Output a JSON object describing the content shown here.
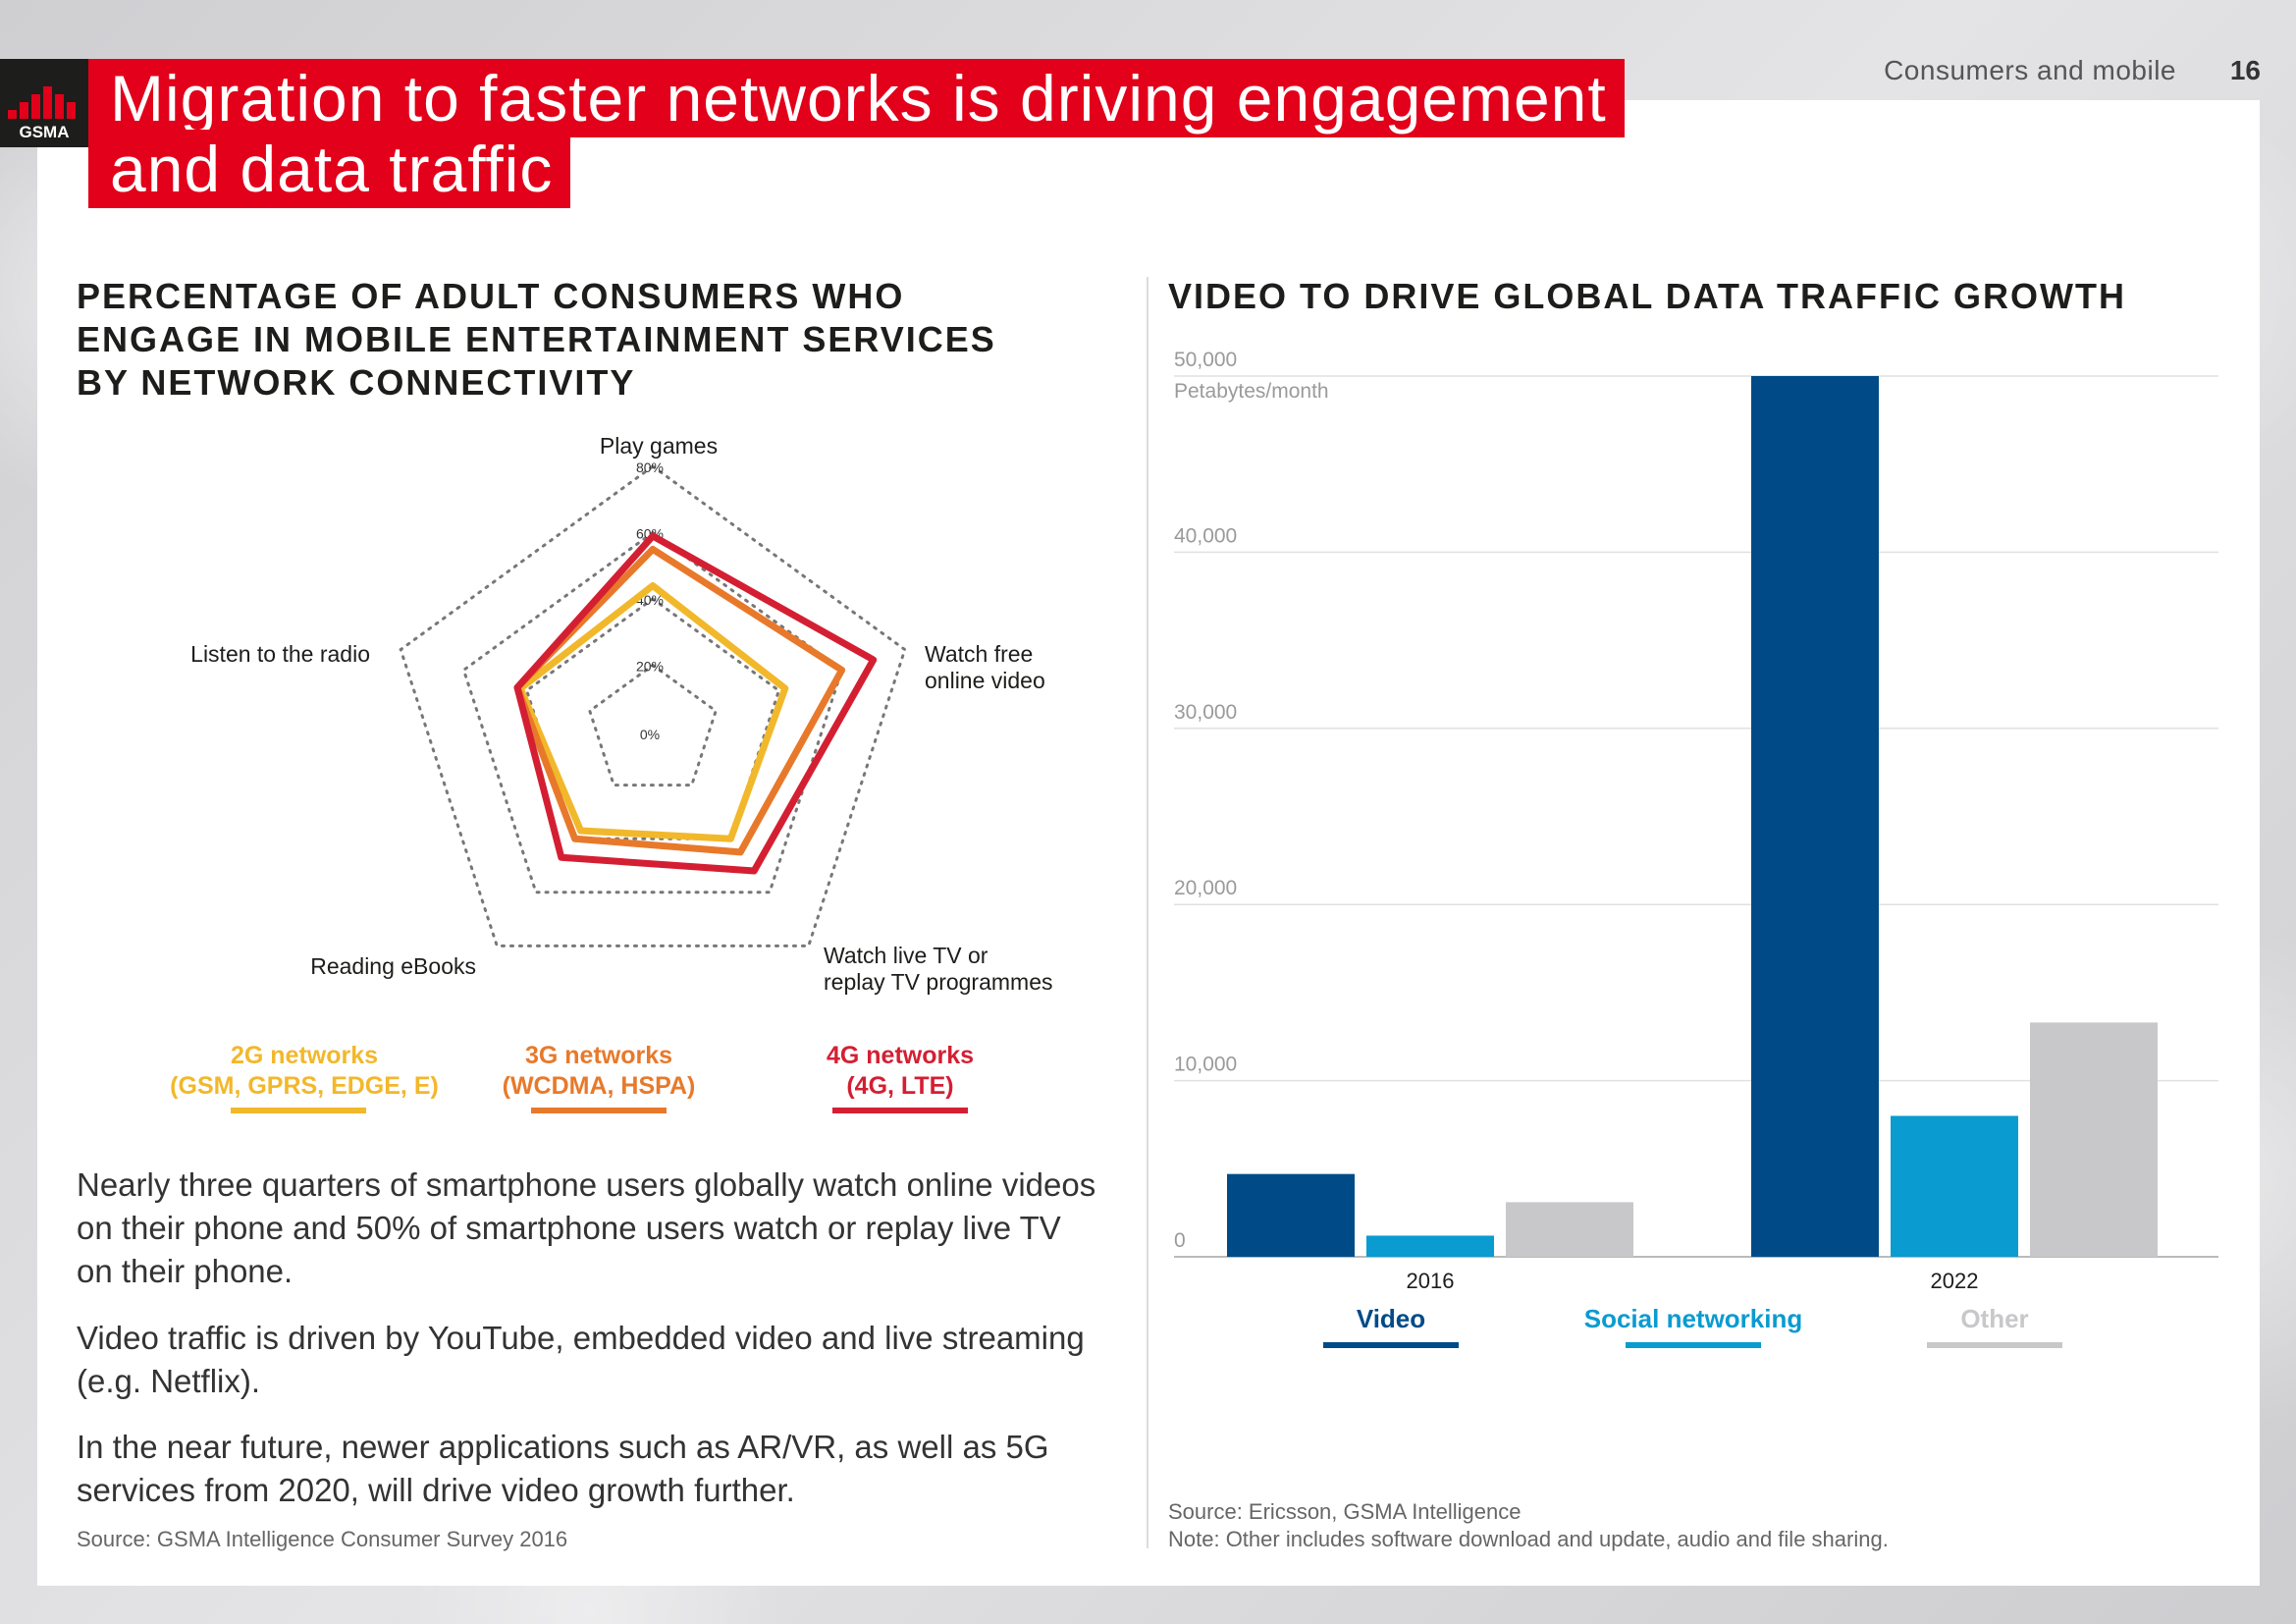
{
  "header": {
    "logo_text": "GSMA",
    "title_line1": "Migration to faster networks is driving engagement",
    "title_line2": "and data traffic",
    "section": "Consumers and mobile",
    "page_number": "16"
  },
  "colors": {
    "brand_red": "#e2001a",
    "series_2g": "#f2b82b",
    "series_3g": "#e8792a",
    "series_4g": "#d41f33",
    "video": "#004b87",
    "social": "#0a9bd0",
    "other": "#c8c8ca"
  },
  "left": {
    "heading_lines": [
      "PERCENTAGE OF ADULT CONSUMERS WHO",
      "ENGAGE IN MOBILE ENTERTAINMENT SERVICES",
      "BY NETWORK CONNECTIVITY"
    ],
    "paragraphs": [
      "Nearly three quarters of smartphone users globally watch online videos on their phone and 50% of smartphone users watch or replay live TV on their phone.",
      "Video traffic is driven by YouTube, embedded video and live streaming (e.g. Netflix).",
      "In the near future, newer applications such as AR/VR, as well as 5G services from 2020, will drive video growth further."
    ],
    "source": "Source: GSMA Intelligence Consumer Survey 2016"
  },
  "right": {
    "heading": "VIDEO TO DRIVE GLOBAL DATA TRAFFIC GROWTH",
    "source": "Source: Ericsson, GSMA Intelligence",
    "note": "Note: Other includes software download and update, audio and file sharing."
  },
  "chart_data": [
    {
      "type": "radar",
      "title": "PERCENTAGE OF ADULT CONSUMERS WHO ENGAGE IN MOBILE ENTERTAINMENT SERVICES BY NETWORK CONNECTIVITY",
      "axes": [
        "Play games",
        "Watch free online video",
        "Watch live TV or replay TV programmes",
        "Reading eBooks",
        "Listen to the radio"
      ],
      "axis_label_lines": [
        [
          "Play games"
        ],
        [
          "Watch free",
          "online video"
        ],
        [
          "Watch live TV or",
          "replay TV programmes"
        ],
        [
          "Reading eBooks"
        ],
        [
          "Listen to the radio"
        ]
      ],
      "ticks": [
        0,
        20,
        40,
        60,
        80
      ],
      "tick_labels": [
        "0%",
        "20%",
        "40%",
        "60%",
        "80%"
      ],
      "range": [
        0,
        80
      ],
      "series": [
        {
          "name": "2G networks (GSM, GPRS, EDGE, E)",
          "label_lines": [
            "2G networks",
            "(GSM, GPRS, EDGE, E)"
          ],
          "values": [
            44,
            42,
            40,
            37,
            42
          ]
        },
        {
          "name": "3G networks (WCDMA, HSPA)",
          "label_lines": [
            "3G networks",
            "(WCDMA, HSPA)"
          ],
          "values": [
            55,
            60,
            45,
            40,
            43
          ]
        },
        {
          "name": "4G networks (4G, LTE)",
          "label_lines": [
            "4G networks",
            "(4G, LTE)"
          ],
          "values": [
            59,
            70,
            52,
            47,
            43
          ]
        }
      ]
    },
    {
      "type": "bar",
      "title": "VIDEO TO DRIVE GLOBAL DATA TRAFFIC GROWTH",
      "ylabel": "Petabytes/month",
      "categories": [
        "2016",
        "2022"
      ],
      "ylim": [
        0,
        50000
      ],
      "yticks": [
        0,
        10000,
        20000,
        30000,
        40000,
        50000
      ],
      "ytick_labels": [
        "0",
        "10,000",
        "20,000",
        "30,000",
        "40,000",
        "50,000"
      ],
      "grid": true,
      "series": [
        {
          "name": "Video",
          "values": [
            4700,
            50000
          ]
        },
        {
          "name": "Social networking",
          "values": [
            1200,
            8000
          ]
        },
        {
          "name": "Other",
          "values": [
            3100,
            13300
          ]
        }
      ]
    }
  ]
}
